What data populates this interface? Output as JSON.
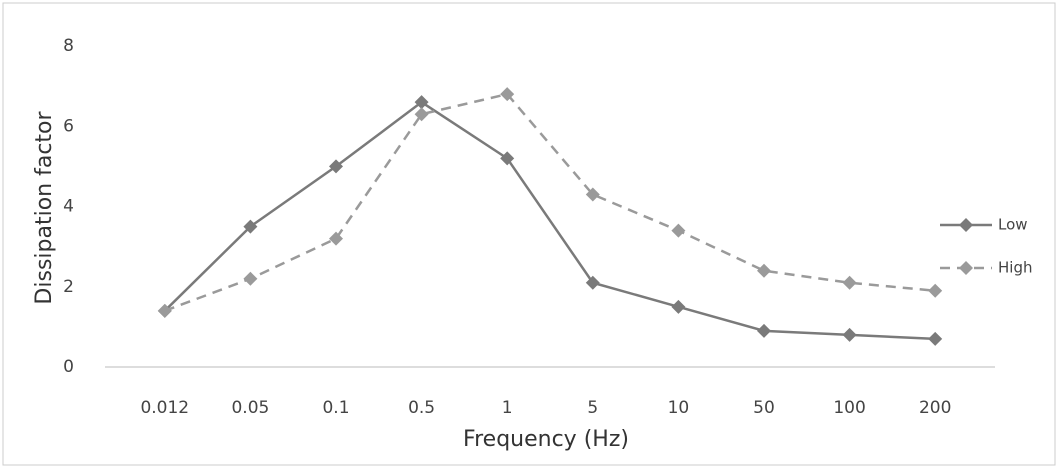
{
  "chart_data": {
    "type": "line",
    "x_label": "Frequency (Hz)",
    "y_label": "Dissipation factor",
    "categories": [
      "0.012",
      "0.05",
      "0.1",
      "0.5",
      "1",
      "5",
      "10",
      "50",
      "100",
      "200"
    ],
    "series": [
      {
        "name": "Low",
        "color": "#7a7a7a",
        "line_style": "solid",
        "values": [
          1.4,
          3.5,
          5.0,
          6.6,
          5.2,
          2.1,
          1.5,
          0.9,
          0.8,
          0.7
        ]
      },
      {
        "name": "High",
        "color": "#9a9a9a",
        "line_style": "dashed",
        "values": [
          1.4,
          2.2,
          3.2,
          6.3,
          6.8,
          4.3,
          3.4,
          2.4,
          2.1,
          1.9
        ]
      }
    ],
    "ylim": [
      0,
      8
    ],
    "yticks": [
      0,
      2,
      4,
      6,
      8
    ],
    "grid": false,
    "legend": "right"
  }
}
